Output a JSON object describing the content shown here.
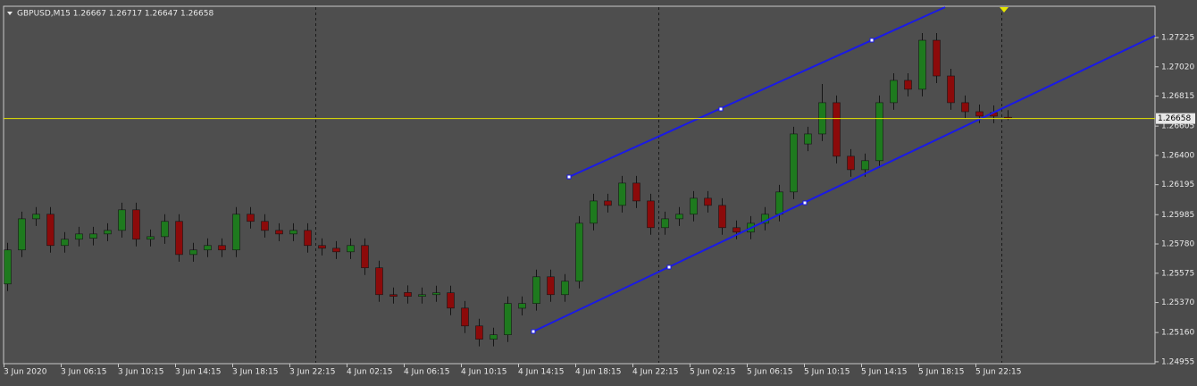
{
  "chart_data": {
    "type": "candlestick",
    "title": "GBPUSD,M15  1.26667 1.26717 1.26647 1.26658",
    "categories": [
      "3 Jun 2020",
      null,
      null,
      null,
      "3 Jun 06:15",
      null,
      null,
      null,
      "3 Jun 10:15",
      null,
      null,
      null,
      "3 Jun 14:15",
      null,
      null,
      null,
      "3 Jun 18:15",
      null,
      null,
      null,
      "3 Jun 22:15",
      null,
      null,
      null,
      "4 Jun 02:15",
      null,
      null,
      null,
      "4 Jun 06:15",
      null,
      null,
      null,
      "4 Jun 10:15",
      null,
      null,
      null,
      "4 Jun 14:15",
      null,
      null,
      null,
      "4 Jun 18:15",
      null,
      null,
      null,
      "4 Jun 22:15",
      null,
      null,
      null,
      "5 Jun 02:15",
      null,
      null,
      null,
      "5 Jun 06:15",
      null,
      null,
      null,
      "5 Jun 10:15",
      null,
      null,
      null,
      "5 Jun 14:15",
      null,
      null,
      null,
      "5 Jun 18:15",
      null,
      null,
      null,
      "5 Jun 22:15",
      null,
      null
    ],
    "open": [
      1.255,
      1.25738,
      1.25956,
      1.25988,
      1.25769,
      1.25813,
      1.2582,
      1.2585,
      1.25875,
      1.26019,
      1.25813,
      1.25831,
      1.25938,
      1.25706,
      1.25738,
      1.25769,
      1.25738,
      1.25988,
      1.25938,
      1.25875,
      1.2585,
      1.25875,
      1.25769,
      1.2575,
      1.25725,
      1.25769,
      1.25613,
      1.25425,
      1.2544,
      1.25413,
      1.25425,
      1.25438,
      1.25331,
      1.25206,
      1.25113,
      1.25144,
      1.2533,
      1.25363,
      1.2555,
      1.25425,
      1.25519,
      1.25925,
      1.26081,
      1.2605,
      1.26206,
      1.26081,
      1.25894,
      1.25956,
      1.25988,
      1.261,
      1.2605,
      1.25894,
      1.25863,
      1.25925,
      1.25988,
      1.26144,
      1.2648,
      1.2655,
      1.26769,
      1.26394,
      1.263,
      1.26363,
      1.26769,
      1.26925,
      1.26863,
      1.27206,
      1.26956,
      1.26769,
      1.26706,
      1.267,
      1.26667
    ],
    "high": [
      1.25788,
      1.26006,
      1.26038,
      1.26038,
      1.25863,
      1.259,
      1.259,
      1.25925,
      1.26069,
      1.26069,
      1.25881,
      1.25988,
      1.25988,
      1.25788,
      1.25819,
      1.25819,
      1.26038,
      1.26038,
      1.25988,
      1.25925,
      1.25925,
      1.25925,
      1.25819,
      1.258,
      1.25819,
      1.25819,
      1.25663,
      1.25475,
      1.2549,
      1.25475,
      1.25488,
      1.25488,
      1.25381,
      1.25256,
      1.25194,
      1.25413,
      1.25413,
      1.256,
      1.256,
      1.25569,
      1.25975,
      1.26131,
      1.26131,
      1.26256,
      1.26256,
      1.26131,
      1.26006,
      1.26038,
      1.2615,
      1.2615,
      1.261,
      1.25944,
      1.25975,
      1.26038,
      1.26194,
      1.266,
      1.266,
      1.269,
      1.26819,
      1.26444,
      1.26413,
      1.26819,
      1.26975,
      1.26975,
      1.27256,
      1.27256,
      1.27006,
      1.26819,
      1.26756,
      1.2675,
      1.26717
    ],
    "low": [
      1.2545,
      1.25688,
      1.25906,
      1.25719,
      1.25719,
      1.25763,
      1.2577,
      1.258,
      1.25825,
      1.25763,
      1.25763,
      1.25781,
      1.25656,
      1.25656,
      1.25688,
      1.25688,
      1.25688,
      1.25888,
      1.25825,
      1.258,
      1.258,
      1.25719,
      1.257,
      1.25675,
      1.25675,
      1.25563,
      1.25375,
      1.25363,
      1.25363,
      1.25363,
      1.25375,
      1.25281,
      1.25156,
      1.25063,
      1.25063,
      1.25094,
      1.2528,
      1.25313,
      1.25375,
      1.25375,
      1.25469,
      1.25875,
      1.26,
      1.26,
      1.26031,
      1.25844,
      1.25844,
      1.25906,
      1.25938,
      1.26,
      1.25844,
      1.25813,
      1.25813,
      1.25875,
      1.25938,
      1.26094,
      1.2643,
      1.265,
      1.26344,
      1.2625,
      1.2625,
      1.26313,
      1.26719,
      1.26813,
      1.26813,
      1.26906,
      1.26719,
      1.26656,
      1.26625,
      1.26625,
      1.26647
    ],
    "close": [
      1.25738,
      1.25956,
      1.25988,
      1.25769,
      1.25813,
      1.2585,
      1.2585,
      1.25875,
      1.26019,
      1.25813,
      1.25831,
      1.25938,
      1.25706,
      1.25738,
      1.25769,
      1.25738,
      1.25988,
      1.25938,
      1.25875,
      1.2585,
      1.25875,
      1.25769,
      1.2575,
      1.25725,
      1.25769,
      1.25613,
      1.25425,
      1.25413,
      1.25413,
      1.25425,
      1.25438,
      1.25331,
      1.25206,
      1.25113,
      1.25144,
      1.25363,
      1.25363,
      1.2555,
      1.25425,
      1.25519,
      1.25925,
      1.26081,
      1.2605,
      1.26206,
      1.26081,
      1.25894,
      1.25956,
      1.25988,
      1.261,
      1.2605,
      1.25894,
      1.25863,
      1.25925,
      1.25988,
      1.26144,
      1.2655,
      1.2655,
      1.26769,
      1.26394,
      1.263,
      1.26363,
      1.26769,
      1.26925,
      1.26863,
      1.27206,
      1.26956,
      1.26769,
      1.26706,
      1.26675,
      1.26675,
      1.26658
    ],
    "up_color": "#1e7a1e",
    "down_color": "#8c0a0a",
    "wick_color": "#151515",
    "ylim": [
      1.24942,
      1.27444
    ],
    "yticks": [
      1.27225,
      {
        "value": 1.2702,
        "label": "1.27020"
      },
      1.26815,
      1.26605,
      {
        "value": 1.264,
        "label": "1.26400"
      },
      1.26195,
      1.25985,
      {
        "value": 1.2578,
        "label": "1.25780"
      },
      1.25575,
      {
        "value": 1.2537,
        "label": "1.25370"
      },
      {
        "value": 1.2516,
        "label": "1.25160"
      },
      1.24955
    ],
    "current_price": 1.26658,
    "current_price_color": "#e6e600"
  }
}
